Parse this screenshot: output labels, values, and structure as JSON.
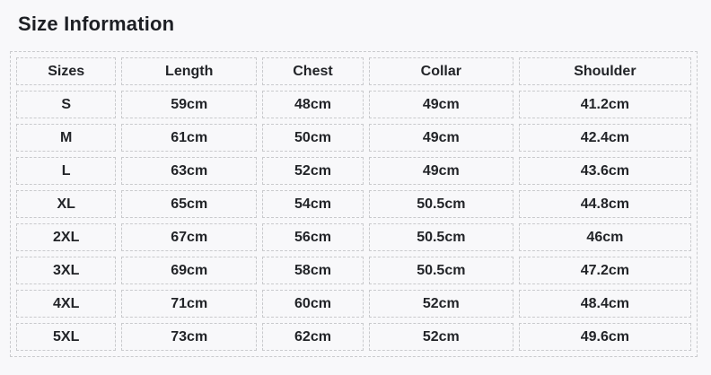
{
  "page": {
    "title": "Size Information",
    "background_color": "#f8f8fa",
    "text_color": "#222428",
    "table_border_color": "#c9cacd"
  },
  "table": {
    "columns": [
      "Sizes",
      "Length",
      "Chest",
      "Collar",
      "Shoulder"
    ],
    "rows": [
      [
        "S",
        "59cm",
        "48cm",
        "49cm",
        "41.2cm"
      ],
      [
        "M",
        "61cm",
        "50cm",
        "49cm",
        "42.4cm"
      ],
      [
        "L",
        "63cm",
        "52cm",
        "49cm",
        "43.6cm"
      ],
      [
        "XL",
        "65cm",
        "54cm",
        "50.5cm",
        "44.8cm"
      ],
      [
        "2XL",
        "67cm",
        "56cm",
        "50.5cm",
        "46cm"
      ],
      [
        "3XL",
        "69cm",
        "58cm",
        "50.5cm",
        "47.2cm"
      ],
      [
        "4XL",
        "71cm",
        "60cm",
        "52cm",
        "48.4cm"
      ],
      [
        "5XL",
        "73cm",
        "62cm",
        "52cm",
        "49.6cm"
      ]
    ],
    "unit": "cm"
  }
}
